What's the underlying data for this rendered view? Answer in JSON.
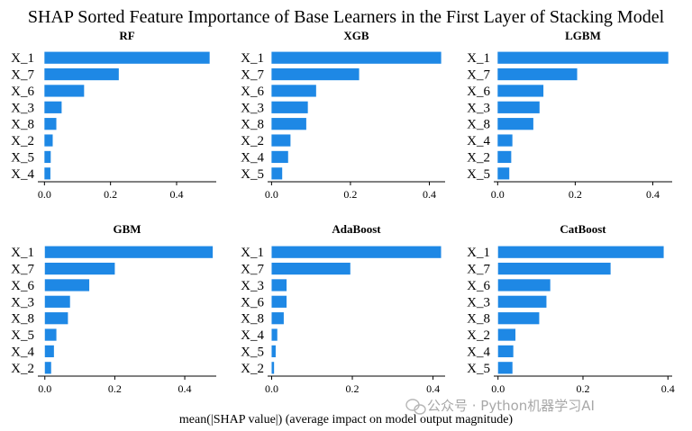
{
  "title": "SHAP Sorted Feature Importance of Base Learners in the First Layer of Stacking Model",
  "xlabel": "mean(|SHAP value|) (average impact on model output magnitude)",
  "watermark": "公众号 · Python机器学习AI",
  "colors": {
    "bar": "#1E88E5",
    "text": "#000000",
    "axis": "#000000",
    "watermark": "#999999"
  },
  "chart_data": [
    {
      "type": "bar",
      "orientation": "horizontal",
      "title": "RF",
      "categories": [
        "X_1",
        "X_7",
        "X_6",
        "X_3",
        "X_8",
        "X_2",
        "X_5",
        "X_4"
      ],
      "values": [
        0.5,
        0.225,
        0.12,
        0.052,
        0.036,
        0.025,
        0.019,
        0.018
      ],
      "xlim": [
        -0.02,
        0.52
      ],
      "xticks": [
        0.0,
        0.2,
        0.4
      ],
      "xtick_labels": [
        "0.0",
        "0.2",
        "0.4"
      ]
    },
    {
      "type": "bar",
      "orientation": "horizontal",
      "title": "XGB",
      "categories": [
        "X_1",
        "X_7",
        "X_6",
        "X_3",
        "X_8",
        "X_2",
        "X_4",
        "X_5"
      ],
      "values": [
        0.43,
        0.222,
        0.113,
        0.092,
        0.088,
        0.048,
        0.042,
        0.027
      ],
      "xlim": [
        -0.01,
        0.44
      ],
      "xticks": [
        0.0,
        0.2,
        0.4
      ],
      "xtick_labels": [
        "0.0",
        "0.2",
        "0.4"
      ]
    },
    {
      "type": "bar",
      "orientation": "horizontal",
      "title": "LGBM",
      "categories": [
        "X_1",
        "X_7",
        "X_6",
        "X_3",
        "X_8",
        "X_4",
        "X_2",
        "X_5"
      ],
      "values": [
        0.44,
        0.205,
        0.118,
        0.108,
        0.092,
        0.038,
        0.035,
        0.03
      ],
      "xlim": [
        -0.01,
        0.45
      ],
      "xticks": [
        0.0,
        0.2,
        0.4
      ],
      "xtick_labels": [
        "0.0",
        "0.2",
        "0.4"
      ]
    },
    {
      "type": "bar",
      "orientation": "horizontal",
      "title": "GBM",
      "categories": [
        "X_1",
        "X_7",
        "X_6",
        "X_3",
        "X_8",
        "X_5",
        "X_4",
        "X_2"
      ],
      "values": [
        0.48,
        0.2,
        0.127,
        0.072,
        0.066,
        0.033,
        0.026,
        0.018
      ],
      "xlim": [
        -0.02,
        0.49
      ],
      "xticks": [
        0.0,
        0.2,
        0.4
      ],
      "xtick_labels": [
        "0.0",
        "0.2",
        "0.4"
      ]
    },
    {
      "type": "bar",
      "orientation": "horizontal",
      "title": "AdaBoost",
      "categories": [
        "X_1",
        "X_7",
        "X_3",
        "X_6",
        "X_8",
        "X_4",
        "X_5",
        "X_2"
      ],
      "values": [
        0.42,
        0.195,
        0.037,
        0.037,
        0.03,
        0.014,
        0.01,
        0.006
      ],
      "xlim": [
        -0.01,
        0.43
      ],
      "xticks": [
        0.0,
        0.2,
        0.4
      ],
      "xtick_labels": [
        "0.0",
        "0.2",
        "0.4"
      ]
    },
    {
      "type": "bar",
      "orientation": "horizontal",
      "title": "CatBoost",
      "categories": [
        "X_1",
        "X_7",
        "X_6",
        "X_3",
        "X_8",
        "X_2",
        "X_4",
        "X_5"
      ],
      "values": [
        0.39,
        0.265,
        0.123,
        0.114,
        0.097,
        0.041,
        0.036,
        0.034
      ],
      "xlim": [
        -0.01,
        0.41
      ],
      "xticks": [
        0.0,
        0.2,
        0.4
      ],
      "xtick_labels": [
        "0.0",
        "0.2",
        "0.4"
      ]
    }
  ]
}
